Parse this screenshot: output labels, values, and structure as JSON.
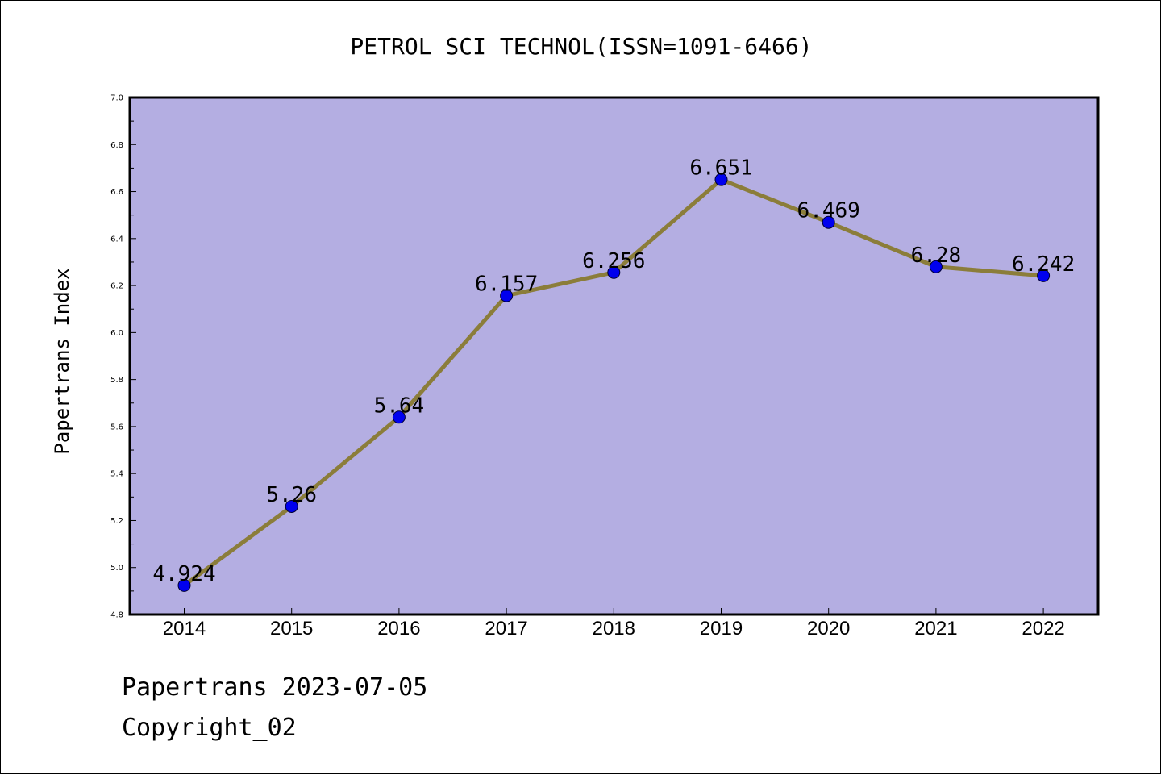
{
  "chart_data": {
    "type": "line",
    "title": "PETROL SCI TECHNOL(ISSN=1091-6466)",
    "xlabel": "",
    "ylabel": "Papertrans Index",
    "categories": [
      "2014",
      "2015",
      "2016",
      "2017",
      "2018",
      "2019",
      "2020",
      "2021",
      "2022"
    ],
    "values": [
      4.924,
      5.26,
      5.64,
      6.157,
      6.256,
      6.651,
      6.469,
      6.28,
      6.242
    ],
    "data_labels": [
      "4.924",
      "5.26",
      "5.64",
      "6.157",
      "6.256",
      "6.651",
      "6.469",
      "6.28",
      "6.242"
    ],
    "ylim": [
      4.8,
      7.0
    ],
    "yticks": [
      "4.8",
      "5.0",
      "5.2",
      "5.4",
      "5.6",
      "5.8",
      "6.0",
      "6.2",
      "6.4",
      "6.6",
      "6.8",
      "7.0"
    ],
    "grid": false,
    "colors": {
      "plot_background": "#b4aee2",
      "line": "#8b7d3a",
      "marker": "#0000ee"
    }
  },
  "footer": {
    "line1": "Papertrans 2023-07-05",
    "line2": "Copyright_02"
  }
}
